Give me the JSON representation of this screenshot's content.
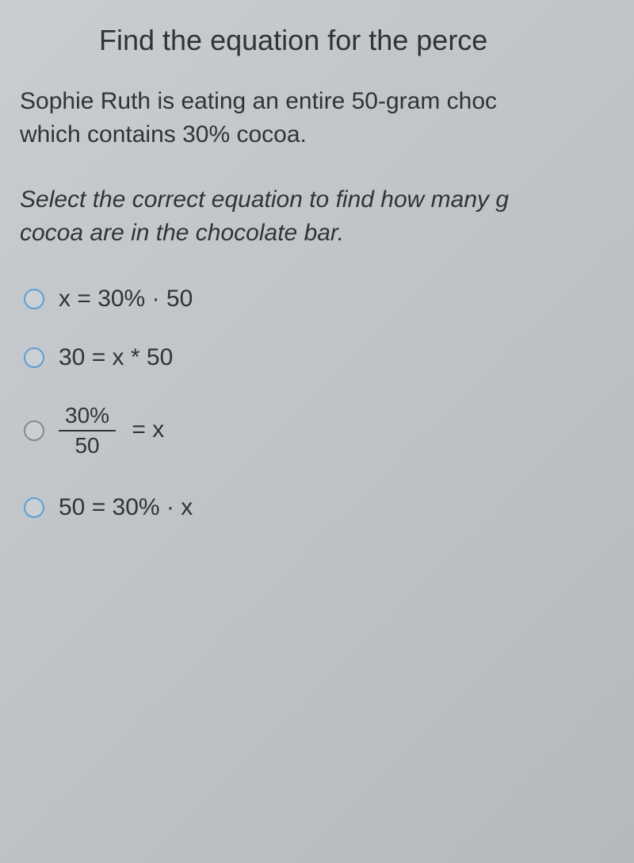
{
  "title": "Find the equation for the perce",
  "problem_line1": "Sophie Ruth is eating an entire 50-gram choc",
  "problem_line2": "which contains 30% cocoa.",
  "instruction_line1": "Select the correct equation to find how many g",
  "instruction_line2": "cocoa are in the chocolate bar.",
  "options": {
    "opt1": "x = 30% · 50",
    "opt2": "30 = x * 50",
    "opt3_numerator": "30%",
    "opt3_denominator": "50",
    "opt3_rest": "= x",
    "opt4": "50 = 30%  · x"
  },
  "colors": {
    "background_start": "#c9cdd1",
    "background_end": "#b5b9bd",
    "text": "#333333",
    "radio_border": "#5a9fd4",
    "radio_gray": "#888888"
  },
  "typography": {
    "title_fontsize": 36,
    "body_fontsize": 30,
    "fraction_fontsize": 28,
    "font_family": "Arial"
  }
}
